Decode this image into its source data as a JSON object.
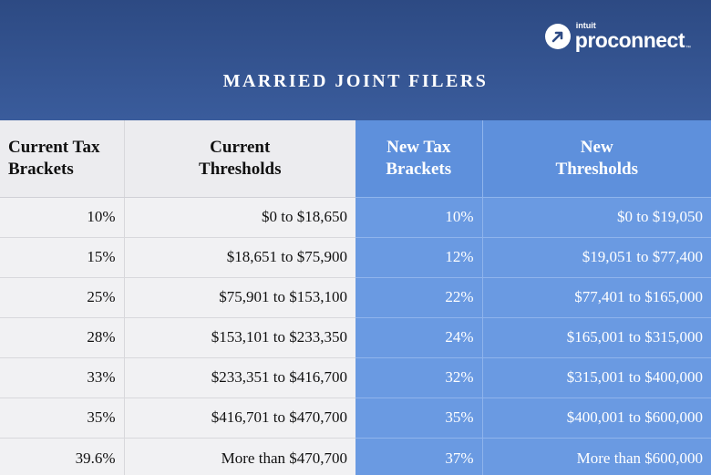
{
  "logo": {
    "small": "intuit",
    "big": "proconnect",
    "tm": "™"
  },
  "title": "MARRIED JOINT FILERS",
  "headers": {
    "current_brackets": [
      "Current Tax",
      "Brackets"
    ],
    "current_thresholds": [
      "Current",
      "Thresholds"
    ],
    "new_brackets": [
      "New Tax",
      "Brackets"
    ],
    "new_thresholds": [
      "New",
      "Thresholds"
    ]
  },
  "rows": [
    {
      "cur_rate": "10%",
      "cur_threshold": "$0 to $18,650",
      "new_rate": "10%",
      "new_threshold": "$0 to $19,050"
    },
    {
      "cur_rate": "15%",
      "cur_threshold": "$18,651 to $75,900",
      "new_rate": "12%",
      "new_threshold": "$19,051 to $77,400"
    },
    {
      "cur_rate": "25%",
      "cur_threshold": "$75,901 to $153,100",
      "new_rate": "22%",
      "new_threshold": "$77,401 to $165,000"
    },
    {
      "cur_rate": "28%",
      "cur_threshold": "$153,101 to $233,350",
      "new_rate": "24%",
      "new_threshold": "$165,001 to $315,000"
    },
    {
      "cur_rate": "33%",
      "cur_threshold": "$233,351 to $416,700",
      "new_rate": "32%",
      "new_threshold": "$315,001 to $400,000"
    },
    {
      "cur_rate": "35%",
      "cur_threshold": "$416,701 to $470,700",
      "new_rate": "35%",
      "new_threshold": "$400,001 to $600,000"
    },
    {
      "cur_rate": "39.6%",
      "cur_threshold": "More than $470,700",
      "new_rate": "37%",
      "new_threshold": "More than $600,000"
    }
  ],
  "colors": {
    "header_bg": "#2d4a83",
    "current_bg": "#f1f1f3",
    "new_bg": "#6a9ae2"
  }
}
